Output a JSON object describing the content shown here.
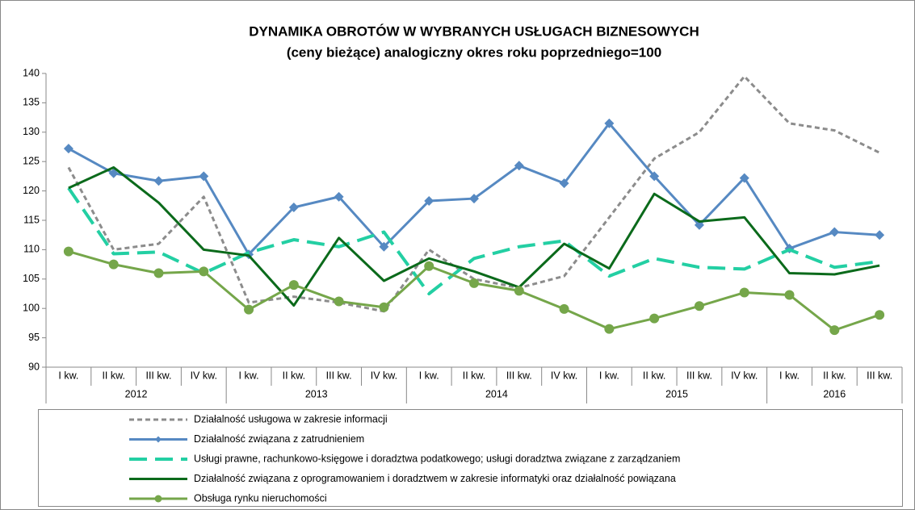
{
  "chart_data": {
    "type": "line",
    "title": "DYNAMIKA OBROTÓW W WYBRANYCH USŁUGACH BIZNESOWYCH",
    "subtitle": "(ceny bieżące) analogiczny okres roku poprzedniego=100",
    "categories": [
      "I kw.",
      "II kw.",
      "III kw.",
      "IV kw.",
      "I kw.",
      "II kw.",
      "III kw.",
      "IV kw.",
      "I kw.",
      "II kw.",
      "III kw.",
      "IV kw.",
      "I kw.",
      "II kw.",
      "III kw.",
      "IV kw.",
      "I kw.",
      "II kw.",
      "III kw."
    ],
    "years": [
      "2012",
      "2013",
      "2014",
      "2015",
      "2016"
    ],
    "ylim": [
      90,
      140
    ],
    "yticks": [
      90,
      95,
      100,
      105,
      110,
      115,
      120,
      125,
      130,
      135,
      140
    ],
    "grid": false,
    "legend": "bottom",
    "series": [
      {
        "name": "Działalność usługowa w zakresie informacji",
        "color": "#8c8c8c",
        "style": "dashed",
        "marker": "none",
        "values": [
          124,
          110,
          111,
          119,
          101,
          102,
          101,
          99.5,
          110,
          105,
          103.5,
          105.5,
          115.5,
          125.5,
          130,
          139.5,
          131.5,
          130.3,
          126.5
        ]
      },
      {
        "name": "Działalność związana z zatrudnieniem",
        "color": "#5689c2",
        "style": "solid",
        "marker": "diamond",
        "values": [
          127.2,
          123,
          121.7,
          122.5,
          109.2,
          117.2,
          119,
          110.5,
          118.3,
          118.7,
          124.3,
          121.3,
          131.5,
          122.5,
          114.2,
          122.2,
          110.2,
          113,
          112.5
        ]
      },
      {
        "name": "Usługi prawne, rachunkowo-księgowe i doradztwa podatkowego; usługi doradztwa związane z zarządzaniem",
        "color": "#23cfa3",
        "style": "longdash",
        "marker": "none",
        "values": [
          120.5,
          109.3,
          109.6,
          106,
          109.5,
          111.7,
          110.5,
          113,
          102.5,
          108.5,
          110.5,
          111.5,
          105.5,
          108.5,
          107,
          106.7,
          110,
          107,
          108
        ]
      },
      {
        "name": "Działalność związana z oprogramowaniem i doradztwem w zakresie informatyki oraz działalność powiązana",
        "color": "#0b6a1b",
        "style": "solid",
        "marker": "none",
        "values": [
          120.5,
          124,
          118,
          110,
          109,
          100.5,
          112,
          104.7,
          108.5,
          106.3,
          103.6,
          111,
          106.8,
          119.5,
          114.8,
          115.5,
          106,
          105.8,
          107.3
        ]
      },
      {
        "name": "Obsługa rynku nieruchomości",
        "color": "#75a64a",
        "style": "solid",
        "marker": "circle",
        "values": [
          109.7,
          107.5,
          106,
          106.3,
          99.8,
          104,
          101.2,
          100.2,
          107.2,
          104.3,
          103,
          99.9,
          96.5,
          98.3,
          100.4,
          102.7,
          102.3,
          96.3,
          98.9
        ]
      }
    ]
  }
}
